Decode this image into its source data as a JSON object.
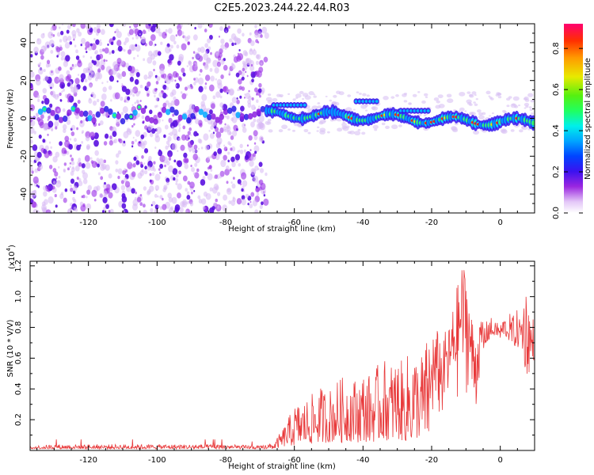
{
  "title": "C2E5.2023.244.22.44.R03",
  "chart_data": [
    {
      "type": "heatmap",
      "xlabel": "Height of straight line (km)",
      "ylabel": "Frequency (Hz)",
      "xlim": [
        -137,
        10
      ],
      "ylim": [
        -50,
        50
      ],
      "xticks": [
        -120,
        -100,
        -80,
        -60,
        -40,
        -20,
        0
      ],
      "yticks": [
        -40,
        -20,
        0,
        20,
        40
      ],
      "colorbar": {
        "label": "Normalized spectral amplitude",
        "range": [
          0.0,
          0.92
        ],
        "ticks": [
          "0.0",
          "0.2",
          "0.4",
          "0.6",
          "0.8"
        ]
      },
      "regions": {
        "scattered_noise_x": [
          -137,
          -68
        ],
        "signal_band_x": [
          -68,
          10
        ],
        "signal_band_freq_center_hz": [
          2,
          -2
        ]
      },
      "grid": false
    },
    {
      "type": "line",
      "xlabel": "Height of straight line (km)",
      "ylabel": "SNR (10 * V/V)",
      "yscale_label": "(x10",
      "yscale_exp": "4",
      "yscale_close": ")",
      "xlim": [
        -137,
        10
      ],
      "ylim": [
        0,
        1.23
      ],
      "xticks": [
        -120,
        -100,
        -80,
        -60,
        -40,
        -20,
        0
      ],
      "yticks": [
        "0.2",
        "0.4",
        "0.6",
        "0.8",
        "1.0",
        "1.2"
      ],
      "series_color": "#e8393a",
      "envelope_x": [
        -137,
        -130,
        -120,
        -110,
        -100,
        -90,
        -80,
        -70,
        -66,
        -64,
        -62,
        -60,
        -58,
        -56,
        -54,
        -52,
        -50,
        -48,
        -46,
        -44,
        -42,
        -40,
        -38,
        -36,
        -34,
        -32,
        -30,
        -28,
        -26,
        -24,
        -22,
        -20,
        -19,
        -18,
        -17,
        -16,
        -15,
        -14,
        -13,
        -12,
        -11,
        -10,
        -9,
        -8,
        -7,
        -6,
        -5,
        -4,
        -3,
        -2,
        -1,
        0,
        1,
        2,
        3,
        4,
        5,
        6,
        7,
        8,
        9,
        10
      ],
      "envelope_min": [
        0.01,
        0.01,
        0.01,
        0.01,
        0.01,
        0.01,
        0.01,
        0.01,
        0.01,
        0.02,
        0.03,
        0.03,
        0.04,
        0.04,
        0.05,
        0.05,
        0.05,
        0.06,
        0.05,
        0.06,
        0.05,
        0.06,
        0.05,
        0.06,
        0.07,
        0.06,
        0.07,
        0.06,
        0.05,
        0.08,
        0.07,
        0.08,
        0.1,
        0.12,
        0.14,
        0.18,
        0.2,
        0.22,
        0.25,
        0.28,
        0.3,
        0.35,
        0.38,
        0.1,
        0.2,
        0.5,
        0.6,
        0.7,
        0.72,
        0.75,
        0.74,
        0.72,
        0.75,
        0.73,
        0.7,
        0.68,
        0.66,
        0.72,
        0.55,
        0.48,
        0.55,
        0.6
      ],
      "envelope_max": [
        0.03,
        0.04,
        0.04,
        0.04,
        0.04,
        0.04,
        0.04,
        0.03,
        0.05,
        0.12,
        0.2,
        0.3,
        0.32,
        0.35,
        0.38,
        0.42,
        0.4,
        0.45,
        0.48,
        0.5,
        0.47,
        0.52,
        0.5,
        0.55,
        0.6,
        0.58,
        0.62,
        0.56,
        0.7,
        0.62,
        0.68,
        0.85,
        0.72,
        0.82,
        0.65,
        0.78,
        0.8,
        0.9,
        1.05,
        1.1,
        1.23,
        1.18,
        0.95,
        0.85,
        0.75,
        0.82,
        0.86,
        0.84,
        0.9,
        0.8,
        0.86,
        0.82,
        0.88,
        0.85,
        0.9,
        0.88,
        0.92,
        0.86,
        1.1,
        1.08,
        0.9,
        0.86
      ],
      "grid": false
    }
  ]
}
